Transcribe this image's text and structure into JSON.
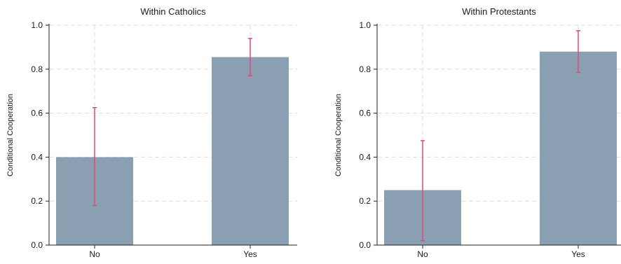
{
  "colors": {
    "bar": "#8a9fb2",
    "error_bar": "#e8457a",
    "grid": "#dedede",
    "axis": "#222222",
    "background": "#ffffff"
  },
  "chart_data": [
    {
      "type": "bar",
      "title": "Within Catholics",
      "xlabel": "",
      "ylabel": "Conditional Cooperation",
      "categories": [
        "No",
        "Yes"
      ],
      "values": [
        0.4,
        0.855
      ],
      "error_low": [
        0.18,
        0.77
      ],
      "error_high": [
        0.625,
        0.94
      ],
      "ylim": [
        0,
        1.0
      ],
      "yticks": [
        "0.0",
        "0.2",
        "0.4",
        "0.6",
        "0.8",
        "1.0"
      ],
      "grid": true
    },
    {
      "type": "bar",
      "title": "Within Protestants",
      "xlabel": "",
      "ylabel": "Conditional Cooperation",
      "categories": [
        "No",
        "Yes"
      ],
      "values": [
        0.25,
        0.88
      ],
      "error_low": [
        0.02,
        0.785
      ],
      "error_high": [
        0.475,
        0.975
      ],
      "ylim": [
        0,
        1.0
      ],
      "yticks": [
        "0.0",
        "0.2",
        "0.4",
        "0.6",
        "0.8",
        "1.0"
      ],
      "grid": true
    }
  ]
}
